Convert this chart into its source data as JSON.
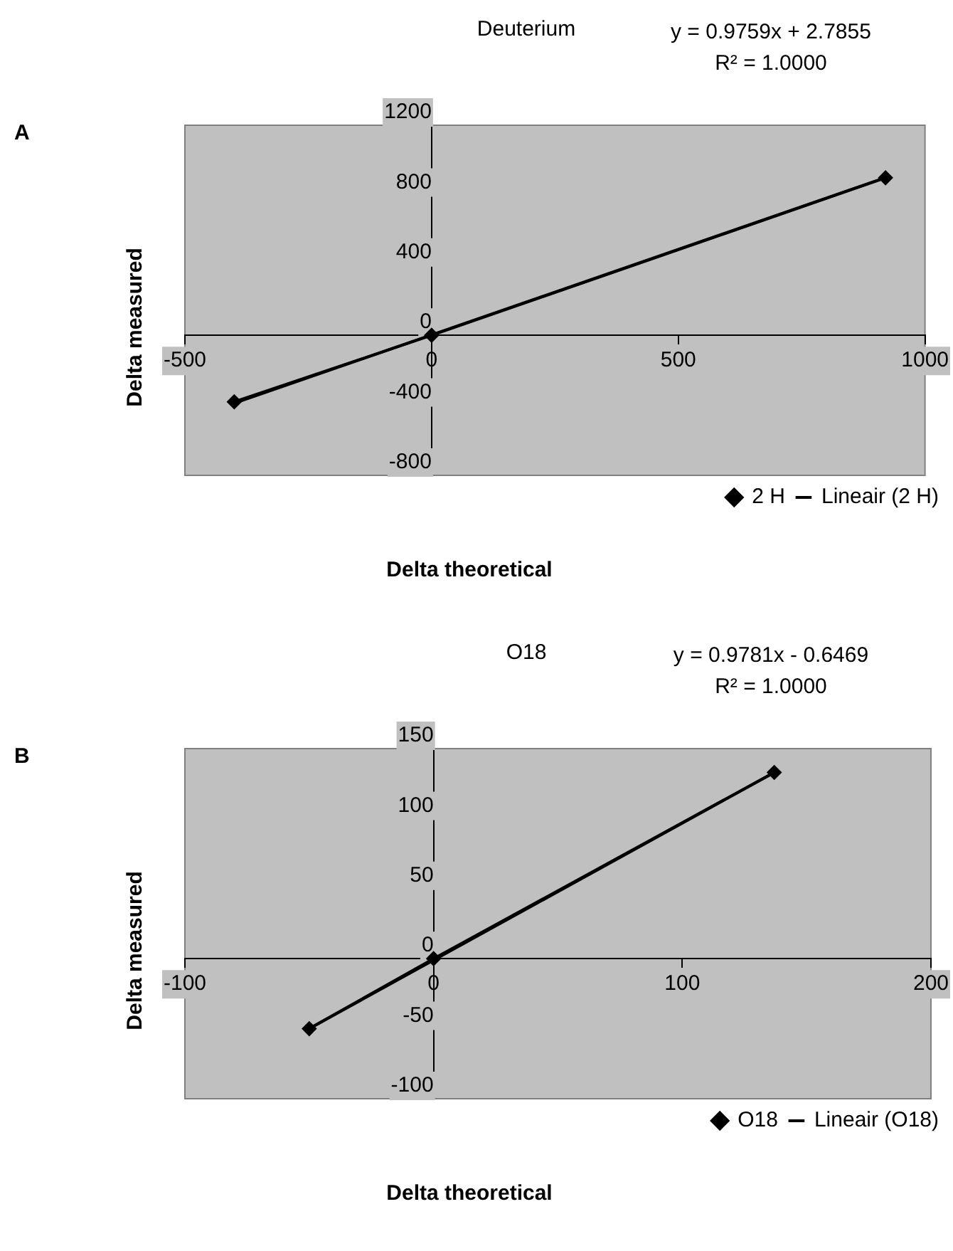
{
  "chart_data": [
    {
      "type": "line",
      "title": "Deuterium",
      "xlabel": "Delta theoretical",
      "ylabel": "Delta measured",
      "annotations": [
        "A",
        "y = 0.9759x + 2.7855",
        "R² = 1.0000"
      ],
      "series": [
        {
          "name": "2 H",
          "color": "#000000",
          "x": [
            -400,
            0,
            920
          ],
          "values": [
            -380,
            0,
            900
          ],
          "marker": "diamond"
        },
        {
          "name": "Lineair (2 H)",
          "type": "line",
          "color": "#000000",
          "x": [
            -400,
            920
          ],
          "values": [
            -388,
            901
          ],
          "marker": "none"
        }
      ],
      "xlim": [
        -500,
        1000
      ],
      "xticks": [
        -500,
        0,
        500,
        1000
      ],
      "ylim": [
        -800,
        1200
      ],
      "yticks": [
        -800,
        -400,
        0,
        400,
        800,
        1200
      ],
      "legend": "bottom right",
      "line_style": "solid"
    },
    {
      "type": "line",
      "title": "O18",
      "xlabel": "Delta theoretical",
      "ylabel": "Delta measured",
      "annotations": [
        "B",
        "y = 0.9781x - 0.6469",
        "R² = 1.0000"
      ],
      "series": [
        {
          "name": "O18",
          "color": "#000000",
          "x": [
            -50,
            0,
            137
          ],
          "values": [
            -50,
            0,
            133
          ],
          "marker": "diamond"
        },
        {
          "name": "Lineair (O18)",
          "type": "line",
          "color": "#000000",
          "x": [
            -50,
            137
          ],
          "values": [
            -50,
            133
          ],
          "marker": "none"
        }
      ],
      "xlim": [
        -100,
        200
      ],
      "xticks": [
        -100,
        0,
        100,
        200
      ],
      "ylim": [
        -100,
        150
      ],
      "yticks": [
        -100,
        -50,
        0,
        50,
        100,
        150
      ],
      "legend": "bottom right",
      "line_style": "solid"
    }
  ]
}
